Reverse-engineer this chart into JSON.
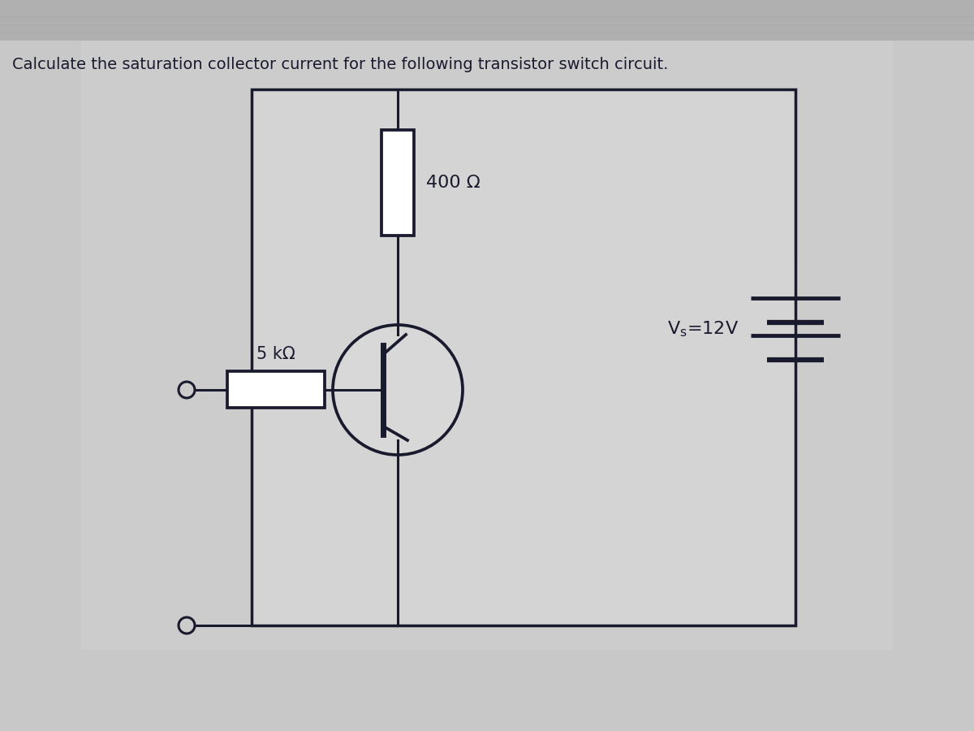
{
  "title": "Calculate the saturation collector current for the following transistor switch circuit.",
  "title_fontsize": 14,
  "bg_color_top": "#c8c8c8",
  "bg_color_main": "#c8c8c8",
  "circuit_bg": "#d0d0d0",
  "line_color": "#1a1a2e",
  "text_400_label": "400 Ω",
  "text_5k_label": "5 kΩ",
  "text_vs_label": "V$_\\mathrm{s}$=12V",
  "lw": 2.2,
  "bat_lw": 3.5
}
